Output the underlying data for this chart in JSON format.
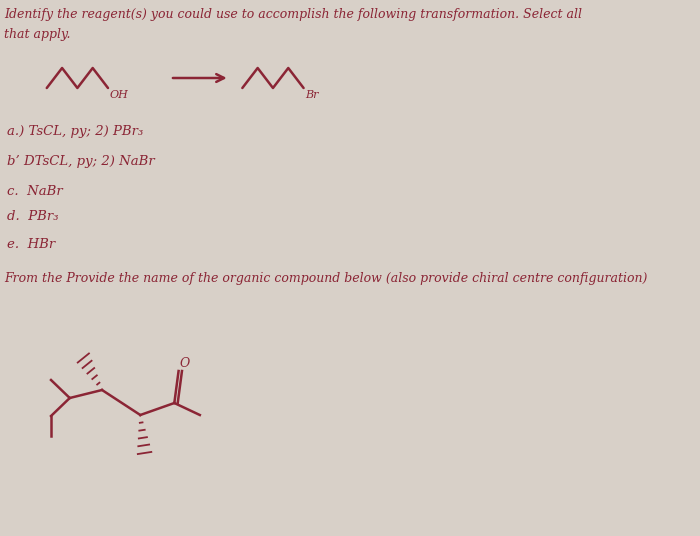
{
  "background_color": "#d8d0c8",
  "text_color": "#8B2535",
  "title_line1": "Identify the reagent(s) you could use to accomplish the following transformation. Select all",
  "title_line2": "that apply.",
  "options": [
    "a.) TsCL, py; 2) PBr₃",
    "b’ DTsCL, py; 2) NaBr",
    "c.  NaBr",
    "d.  PBr₃",
    "e.  HBr"
  ],
  "second_question": "From the Provide the name of the organic compound below (also provide chiral centre configuration)",
  "reactant_label": "OH",
  "product_label": "Br"
}
